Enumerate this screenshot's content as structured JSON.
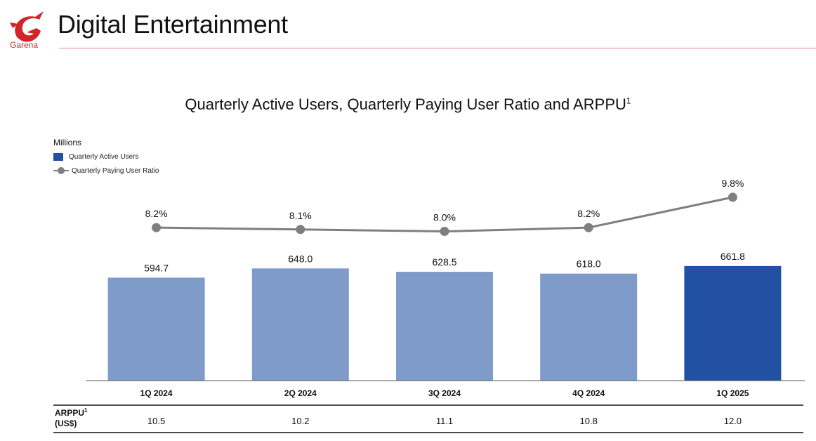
{
  "header": {
    "logo_text": "Garena",
    "title": "Digital Entertainment"
  },
  "chart_data": {
    "type": "bar",
    "title": "Quarterly Active Users, Quarterly Paying User Ratio and ARPPU",
    "title_sup": "1",
    "units_label": "Millions",
    "categories": [
      "1Q 2024",
      "2Q 2024",
      "3Q 2024",
      "4Q 2024",
      "1Q 2025"
    ],
    "series": [
      {
        "name": "Quarterly Active Users",
        "type": "bar",
        "values": [
          594.7,
          648.0,
          628.5,
          618.0,
          661.8
        ],
        "labels": [
          "594.7",
          "648.0",
          "628.5",
          "618.0",
          "661.8"
        ]
      },
      {
        "name": "Quarterly Paying User Ratio",
        "type": "line",
        "values": [
          8.2,
          8.1,
          8.0,
          8.2,
          9.8
        ],
        "labels": [
          "8.2%",
          "8.1%",
          "8.0%",
          "8.2%",
          "9.8%"
        ]
      }
    ],
    "legend": {
      "placement": "top-left"
    },
    "grid": false,
    "colors": {
      "bar": "#7f9bc9",
      "bar_highlight": "#2251a3",
      "line": "#7f7f7f"
    },
    "table": {
      "row_label_main": "ARPPU",
      "row_label_sup": "1",
      "row_label_unit": "(US$)",
      "values": [
        "10.5",
        "10.2",
        "11.1",
        "10.8",
        "12.0"
      ]
    }
  }
}
